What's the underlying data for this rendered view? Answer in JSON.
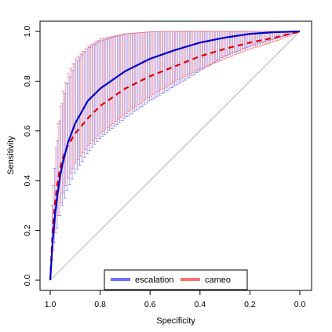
{
  "chart_data": {
    "type": "line",
    "title": "",
    "xlabel": "Specificity",
    "ylabel": "Sensitivity",
    "xlim": [
      1.0,
      0.0
    ],
    "ylim": [
      0.0,
      1.0
    ],
    "x_ticks": [
      "1.0",
      "0.8",
      "0.6",
      "0.4",
      "0.2",
      "0.0"
    ],
    "y_ticks": [
      "0.0",
      "0.2",
      "0.4",
      "0.6",
      "0.8",
      "1.0"
    ],
    "reference_line": {
      "from": [
        1.0,
        0.0
      ],
      "to": [
        0.0,
        1.0
      ],
      "color": "#a0a0a0"
    },
    "grid": false,
    "legend": {
      "position": "bottom-center"
    },
    "series": [
      {
        "name": "escalation",
        "color": "#0000cc",
        "error_color": "#6f6fff",
        "line_style": "solid",
        "specificity": [
          1.0,
          0.99,
          0.98,
          0.97,
          0.96,
          0.95,
          0.93,
          0.9,
          0.85,
          0.8,
          0.7,
          0.6,
          0.5,
          0.4,
          0.3,
          0.2,
          0.1,
          0.0
        ],
        "sensitivity": [
          0.0,
          0.16,
          0.27,
          0.35,
          0.42,
          0.47,
          0.55,
          0.63,
          0.72,
          0.77,
          0.84,
          0.89,
          0.925,
          0.955,
          0.975,
          0.99,
          0.997,
          1.0
        ],
        "lower": [
          0.0,
          0.08,
          0.15,
          0.21,
          0.26,
          0.3,
          0.36,
          0.43,
          0.51,
          0.57,
          0.65,
          0.72,
          0.78,
          0.84,
          0.9,
          0.94,
          0.97,
          1.0
        ],
        "upper": [
          0.0,
          0.3,
          0.45,
          0.56,
          0.64,
          0.71,
          0.79,
          0.87,
          0.93,
          0.96,
          0.99,
          0.998,
          1.0,
          1.0,
          1.0,
          1.0,
          1.0,
          1.0
        ]
      },
      {
        "name": "cameo",
        "color": "#dd0000",
        "error_color": "#ff7070",
        "line_style": "dashed",
        "specificity": [
          1.0,
          0.99,
          0.98,
          0.97,
          0.96,
          0.95,
          0.93,
          0.9,
          0.85,
          0.8,
          0.7,
          0.6,
          0.5,
          0.4,
          0.3,
          0.2,
          0.1,
          0.0
        ],
        "sensitivity": [
          0.0,
          0.21,
          0.32,
          0.4,
          0.45,
          0.49,
          0.54,
          0.59,
          0.65,
          0.7,
          0.77,
          0.82,
          0.86,
          0.9,
          0.93,
          0.955,
          0.975,
          1.0
        ],
        "lower": [
          0.0,
          0.12,
          0.19,
          0.26,
          0.31,
          0.35,
          0.41,
          0.47,
          0.54,
          0.59,
          0.67,
          0.74,
          0.8,
          0.85,
          0.89,
          0.93,
          0.96,
          1.0
        ],
        "upper": [
          0.0,
          0.38,
          0.53,
          0.63,
          0.7,
          0.76,
          0.83,
          0.89,
          0.94,
          0.97,
          0.99,
          0.998,
          1.0,
          1.0,
          1.0,
          1.0,
          1.0,
          1.0
        ]
      }
    ]
  }
}
